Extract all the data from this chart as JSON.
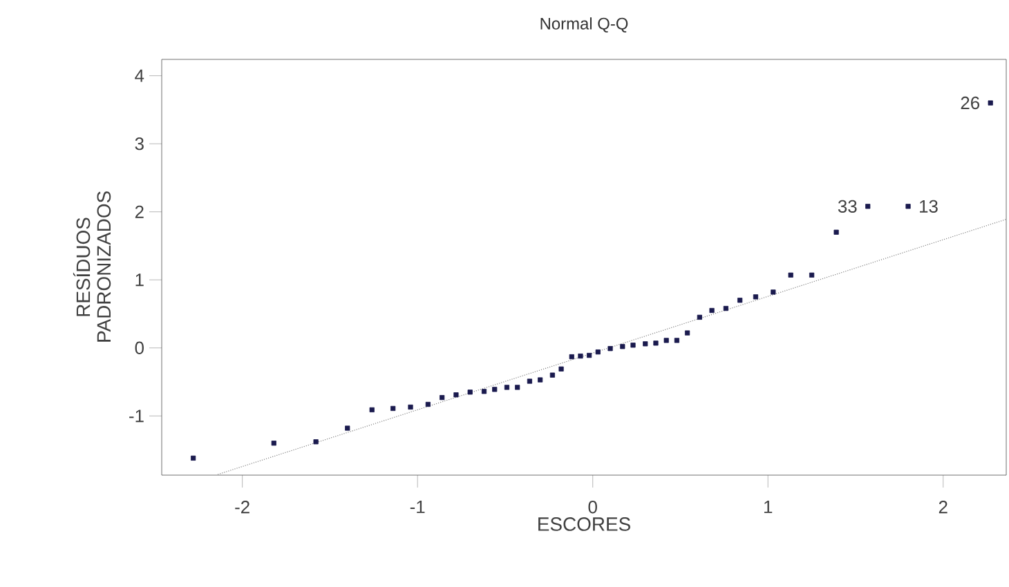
{
  "chart_data": {
    "type": "scatter",
    "title": "Normal Q-Q",
    "xlabel": "ESCORES",
    "ylabel": "RESÍDUOS PADRONIZADOS",
    "xlim": [
      -2.46,
      2.36
    ],
    "ylim": [
      -1.87,
      4.24
    ],
    "xticks": [
      -2,
      -1,
      0,
      1,
      2
    ],
    "yticks": [
      -1,
      0,
      1,
      2,
      3,
      4
    ],
    "grid": false,
    "marker": "square",
    "series": [
      {
        "color": "#1a1a4e",
        "x": [
          -2.28,
          -1.82,
          -1.58,
          -1.4,
          -1.26,
          -1.14,
          -1.04,
          -0.94,
          -0.86,
          -0.78,
          -0.7,
          -0.62,
          -0.56,
          -0.49,
          -0.43,
          -0.36,
          -0.3,
          -0.23,
          -0.18,
          -0.12,
          -0.07,
          -0.02,
          0.03,
          0.1,
          0.17,
          0.23,
          0.3,
          0.36,
          0.42,
          0.48,
          0.54,
          0.61,
          0.68,
          0.76,
          0.84,
          0.93,
          1.03,
          1.13,
          1.25,
          1.39,
          1.57,
          1.8,
          2.27
        ],
        "values": [
          -1.62,
          -1.4,
          -1.38,
          -1.18,
          -0.91,
          -0.89,
          -0.87,
          -0.83,
          -0.73,
          -0.69,
          -0.65,
          -0.64,
          -0.61,
          -0.58,
          -0.58,
          -0.49,
          -0.47,
          -0.4,
          -0.31,
          -0.13,
          -0.12,
          -0.11,
          -0.06,
          -0.01,
          0.02,
          0.04,
          0.06,
          0.07,
          0.11,
          0.11,
          0.22,
          0.45,
          0.55,
          0.58,
          0.7,
          0.75,
          0.82,
          1.07,
          1.07,
          1.7,
          2.08,
          2.08,
          3.6
        ]
      },
      {
        "type": "line",
        "color": "#808080",
        "line_style": "dotted",
        "marker": "none",
        "x": [
          -2.14,
          2.36
        ],
        "values": [
          -1.86,
          1.89
        ]
      }
    ],
    "annotations": [
      {
        "text": "26",
        "x": 2.27,
        "y": 3.6
      },
      {
        "text": "33",
        "x": 1.57,
        "y": 2.08
      },
      {
        "text": "13",
        "x": 1.8,
        "y": 2.08
      }
    ]
  }
}
